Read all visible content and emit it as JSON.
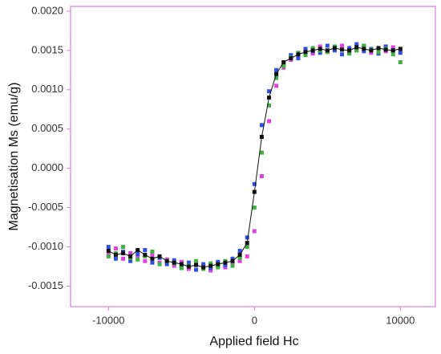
{
  "chart_data": {
    "type": "scatter",
    "xlabel": "Applied field Hc",
    "ylabel": "Magnetisation Ms (emu/g)",
    "xlim": [
      -12600,
      12400
    ],
    "ylim": [
      -0.00176,
      0.00206
    ],
    "xticks": [
      -10000,
      0,
      10000
    ],
    "yticks": [
      {
        "value": -0.0015,
        "label": "-0.0015"
      },
      {
        "value": -0.001,
        "label": "-0.0010"
      },
      {
        "value": -0.0005,
        "label": "-0.0005"
      },
      {
        "value": 0,
        "label": "0.0000"
      },
      {
        "value": 0.0005,
        "label": "0.0005"
      },
      {
        "value": 0.001,
        "label": "0.0010"
      },
      {
        "value": 0.0015,
        "label": "0.0015"
      },
      {
        "value": 0.002,
        "label": "0.0020"
      }
    ],
    "axis_color": "#e27be2",
    "x": [
      -10000,
      -9500,
      -9000,
      -8500,
      -8000,
      -7500,
      -7000,
      -6500,
      -6000,
      -5500,
      -5000,
      -4500,
      -4000,
      -3500,
      -3000,
      -2500,
      -2000,
      -1500,
      -1000,
      -500,
      0,
      500,
      1000,
      1500,
      2000,
      2500,
      3000,
      3500,
      4000,
      4500,
      5000,
      5500,
      6000,
      6500,
      7000,
      7500,
      8000,
      8500,
      9000,
      9500,
      10000
    ],
    "series": [
      {
        "color": "#e040e0",
        "values": [
          -0.0011,
          -0.00102,
          -0.00115,
          -0.00108,
          -0.00112,
          -0.00118,
          -0.0011,
          -0.0012,
          -0.00116,
          -0.00124,
          -0.00119,
          -0.00128,
          -0.00121,
          -0.00125,
          -0.0013,
          -0.00124,
          -0.00126,
          -0.00122,
          -0.00118,
          -0.00112,
          -0.0008,
          -0.0001,
          0.0006,
          0.00105,
          0.00128,
          0.00138,
          0.00142,
          0.0015,
          0.00146,
          0.00155,
          0.00149,
          0.00152,
          0.00156,
          0.00148,
          0.00151,
          0.00155,
          0.00147,
          0.00152,
          0.00149,
          0.00154,
          0.00148
        ]
      },
      {
        "color": "#3050e0",
        "values": [
          -0.001,
          -0.00115,
          -0.00106,
          -0.00118,
          -0.00109,
          -0.00104,
          -0.0012,
          -0.00114,
          -0.00122,
          -0.00117,
          -0.00126,
          -0.0012,
          -0.00129,
          -0.00122,
          -0.00127,
          -0.00119,
          -0.00123,
          -0.00115,
          -0.00105,
          -0.00088,
          -0.0002,
          0.00055,
          0.00098,
          0.00125,
          0.00132,
          0.00144,
          0.0014,
          0.00152,
          0.00149,
          0.00147,
          0.00156,
          0.0015,
          0.00145,
          0.00153,
          0.00158,
          0.00149,
          0.00152,
          0.00146,
          0.00155,
          0.0015,
          0.00147
        ]
      },
      {
        "color": "#40b040",
        "values": [
          -0.00112,
          -0.00108,
          -0.001,
          -0.00114,
          -0.00116,
          -0.00112,
          -0.00106,
          -0.00122,
          -0.00118,
          -0.00121,
          -0.00127,
          -0.00124,
          -0.00118,
          -0.00128,
          -0.00121,
          -0.00126,
          -0.00118,
          -0.00124,
          -0.00114,
          -0.001,
          -0.0005,
          0.0002,
          0.0008,
          0.00115,
          0.0013,
          0.00141,
          0.00147,
          0.00144,
          0.00153,
          0.0015,
          0.00148,
          0.00155,
          0.00151,
          0.00146,
          0.0015,
          0.00156,
          0.00151,
          0.00148,
          0.00152,
          0.00145,
          0.00135
        ]
      },
      {
        "color": "#111111",
        "line": true,
        "values": [
          -0.00105,
          -0.0011,
          -0.00108,
          -0.00112,
          -0.00104,
          -0.0011,
          -0.00115,
          -0.00112,
          -0.00118,
          -0.0012,
          -0.00122,
          -0.00125,
          -0.00123,
          -0.00126,
          -0.00124,
          -0.00122,
          -0.0012,
          -0.00118,
          -0.0011,
          -0.00095,
          -0.0003,
          0.0004,
          0.0009,
          0.0012,
          0.00135,
          0.0014,
          0.00145,
          0.00148,
          0.0015,
          0.00152,
          0.0015,
          0.00153,
          0.00151,
          0.0015,
          0.00154,
          0.00152,
          0.0015,
          0.00153,
          0.00151,
          0.0015,
          0.00152
        ]
      }
    ]
  }
}
